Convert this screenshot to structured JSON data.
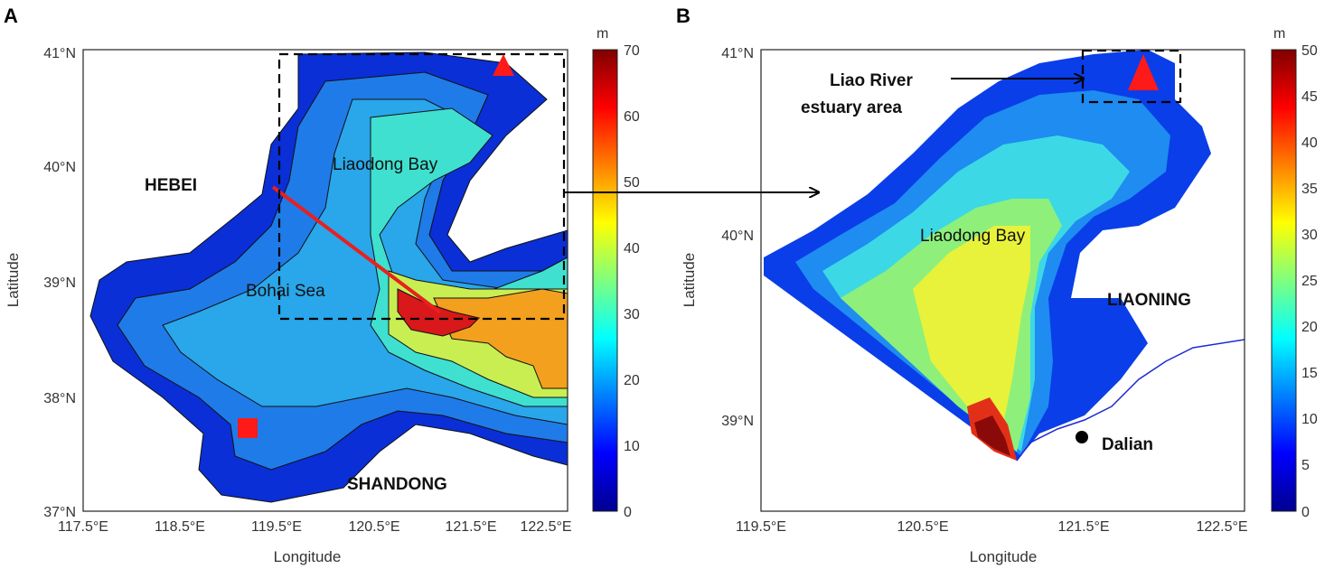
{
  "panel_a": {
    "letter": "A",
    "xlabel": "Longitude",
    "ylabel": "Latitude",
    "lon_ticks": [
      "117.5°E",
      "118.5°E",
      "119.5°E",
      "120.5°E",
      "121.5°E",
      "122.5°E"
    ],
    "lat_ticks": [
      "41°N",
      "40°N",
      "39°N",
      "38°N",
      "37°N"
    ],
    "labels": {
      "hebei": "HEBEI",
      "shandong": "SHANDONG",
      "liaodong_bay": "Liaodong Bay",
      "bohai_sea": "Bohai Sea"
    },
    "colorbar": {
      "unit": "m",
      "ticks": [
        "70",
        "60",
        "50",
        "40",
        "30",
        "20",
        "10",
        "0"
      ],
      "min": 0,
      "max": 70
    }
  },
  "panel_b": {
    "letter": "B",
    "xlabel": "Longitude",
    "ylabel": "Latitude",
    "lon_ticks": [
      "119.5°E",
      "120.5°E",
      "121.5°E",
      "122.5°E"
    ],
    "lat_ticks": [
      "41°N",
      "40°N",
      "39°N"
    ],
    "labels": {
      "estuary_line1": "Liao River",
      "estuary_line2": "estuary area",
      "liaodong_bay": "Liaodong Bay",
      "liaoning": "LIAONING",
      "dalian": "Dalian"
    },
    "colorbar": {
      "unit": "m",
      "ticks": [
        "50",
        "45",
        "40",
        "35",
        "30",
        "25",
        "20",
        "15",
        "10",
        "5",
        "0"
      ],
      "min": 0,
      "max": 50
    }
  },
  "colors": {
    "red_marker": "#ff1a1a",
    "transect": "#e8201e"
  }
}
